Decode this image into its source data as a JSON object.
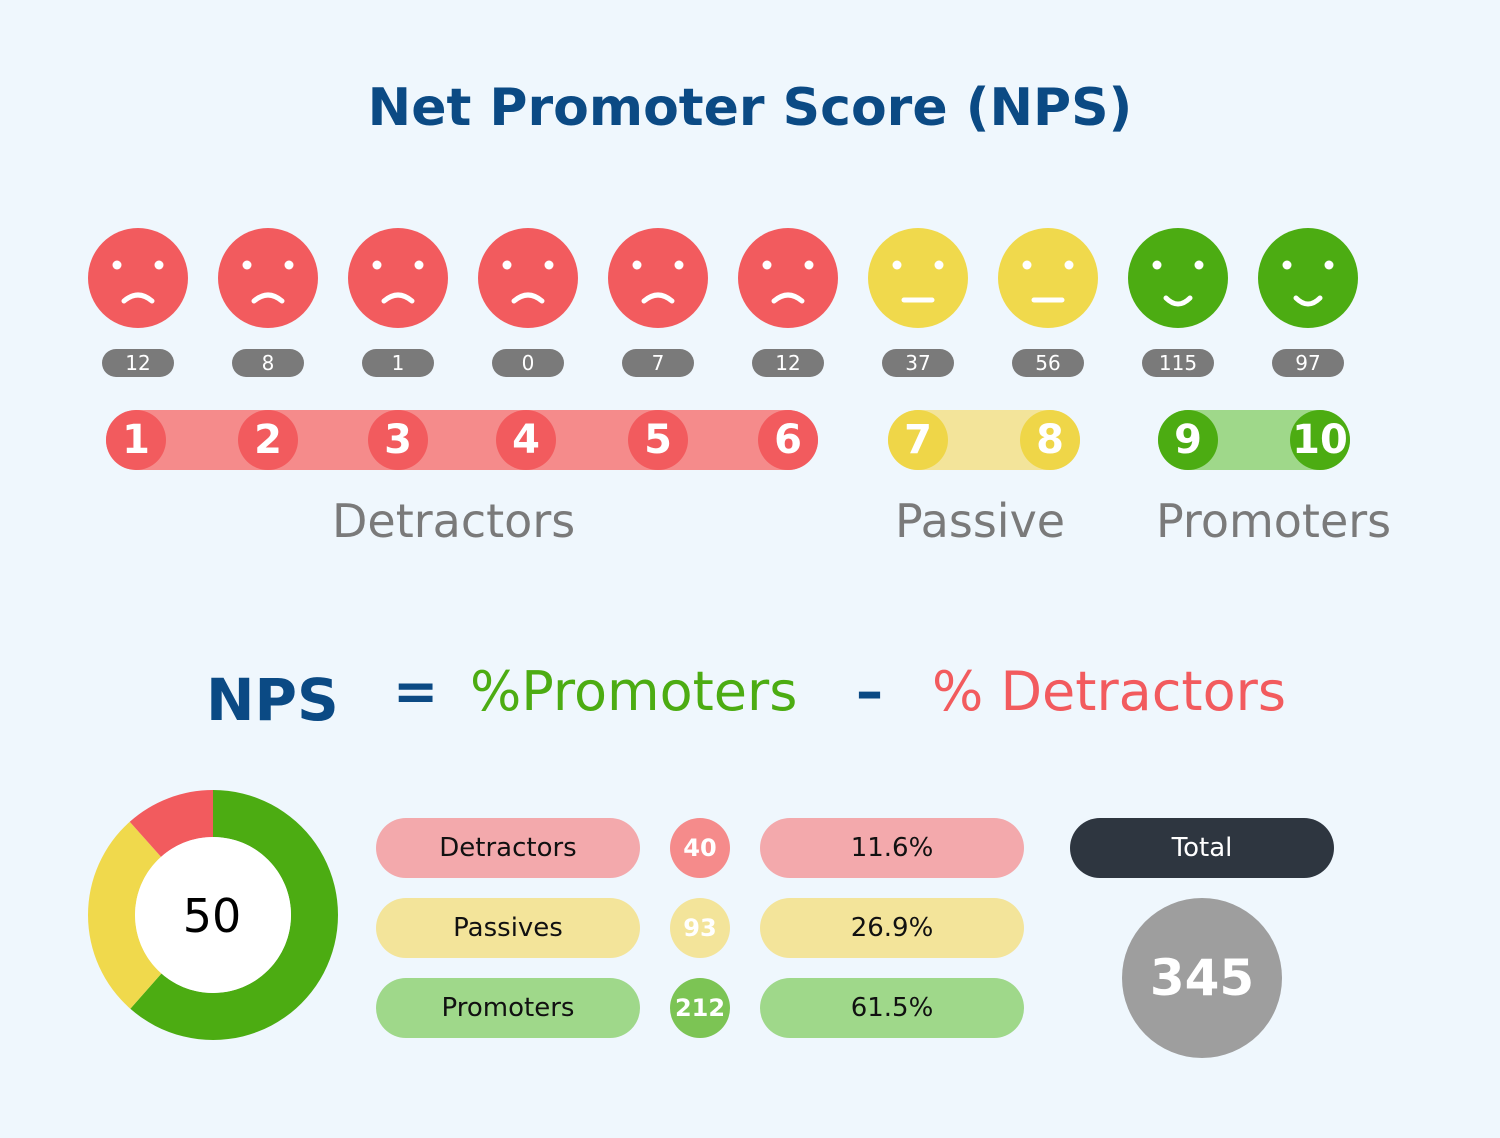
{
  "title": "Net Promoter Score (NPS)",
  "colors": {
    "detractor": "#f25b5e",
    "passive": "#f0d94c",
    "promoter": "#4cac12",
    "navy": "#0b4a84",
    "grey": "#7a7a7a"
  },
  "scale": [
    {
      "score": "1",
      "count": "12",
      "group": "detractor",
      "face": "sad-face-icon"
    },
    {
      "score": "2",
      "count": "8",
      "group": "detractor",
      "face": "sad-face-icon"
    },
    {
      "score": "3",
      "count": "1",
      "group": "detractor",
      "face": "sad-face-icon"
    },
    {
      "score": "4",
      "count": "0",
      "group": "detractor",
      "face": "sad-face-icon"
    },
    {
      "score": "5",
      "count": "7",
      "group": "detractor",
      "face": "sad-face-icon"
    },
    {
      "score": "6",
      "count": "12",
      "group": "detractor",
      "face": "sad-face-icon"
    },
    {
      "score": "7",
      "count": "37",
      "group": "passive",
      "face": "neutral-face-icon"
    },
    {
      "score": "8",
      "count": "56",
      "group": "passive",
      "face": "neutral-face-icon"
    },
    {
      "score": "9",
      "count": "115",
      "group": "promoter",
      "face": "happy-face-icon"
    },
    {
      "score": "10",
      "count": "97",
      "group": "promoter",
      "face": "happy-face-icon"
    }
  ],
  "groups": {
    "detractors": "Detractors",
    "passive": "Passive",
    "promoters": "Promoters"
  },
  "formula": {
    "nps": "NPS",
    "equals": "=",
    "promoters": "%Promoters",
    "minus": "–",
    "detractors": "% Detractors"
  },
  "summary": {
    "nps_value": "50",
    "rows": [
      {
        "label": "Detractors",
        "count": "40",
        "percent": "11.6%"
      },
      {
        "label": "Passives",
        "count": "93",
        "percent": "26.9%"
      },
      {
        "label": "Promoters",
        "count": "212",
        "percent": "61.5%"
      }
    ],
    "total_label": "Total",
    "total_value": "345"
  },
  "chart_data": {
    "type": "pie",
    "categories": [
      "Promoters",
      "Passives",
      "Detractors"
    ],
    "values": [
      61.5,
      26.9,
      11.6
    ],
    "colors": [
      "#4cac12",
      "#f0d94c",
      "#f25b5e"
    ],
    "center_label": "50"
  }
}
